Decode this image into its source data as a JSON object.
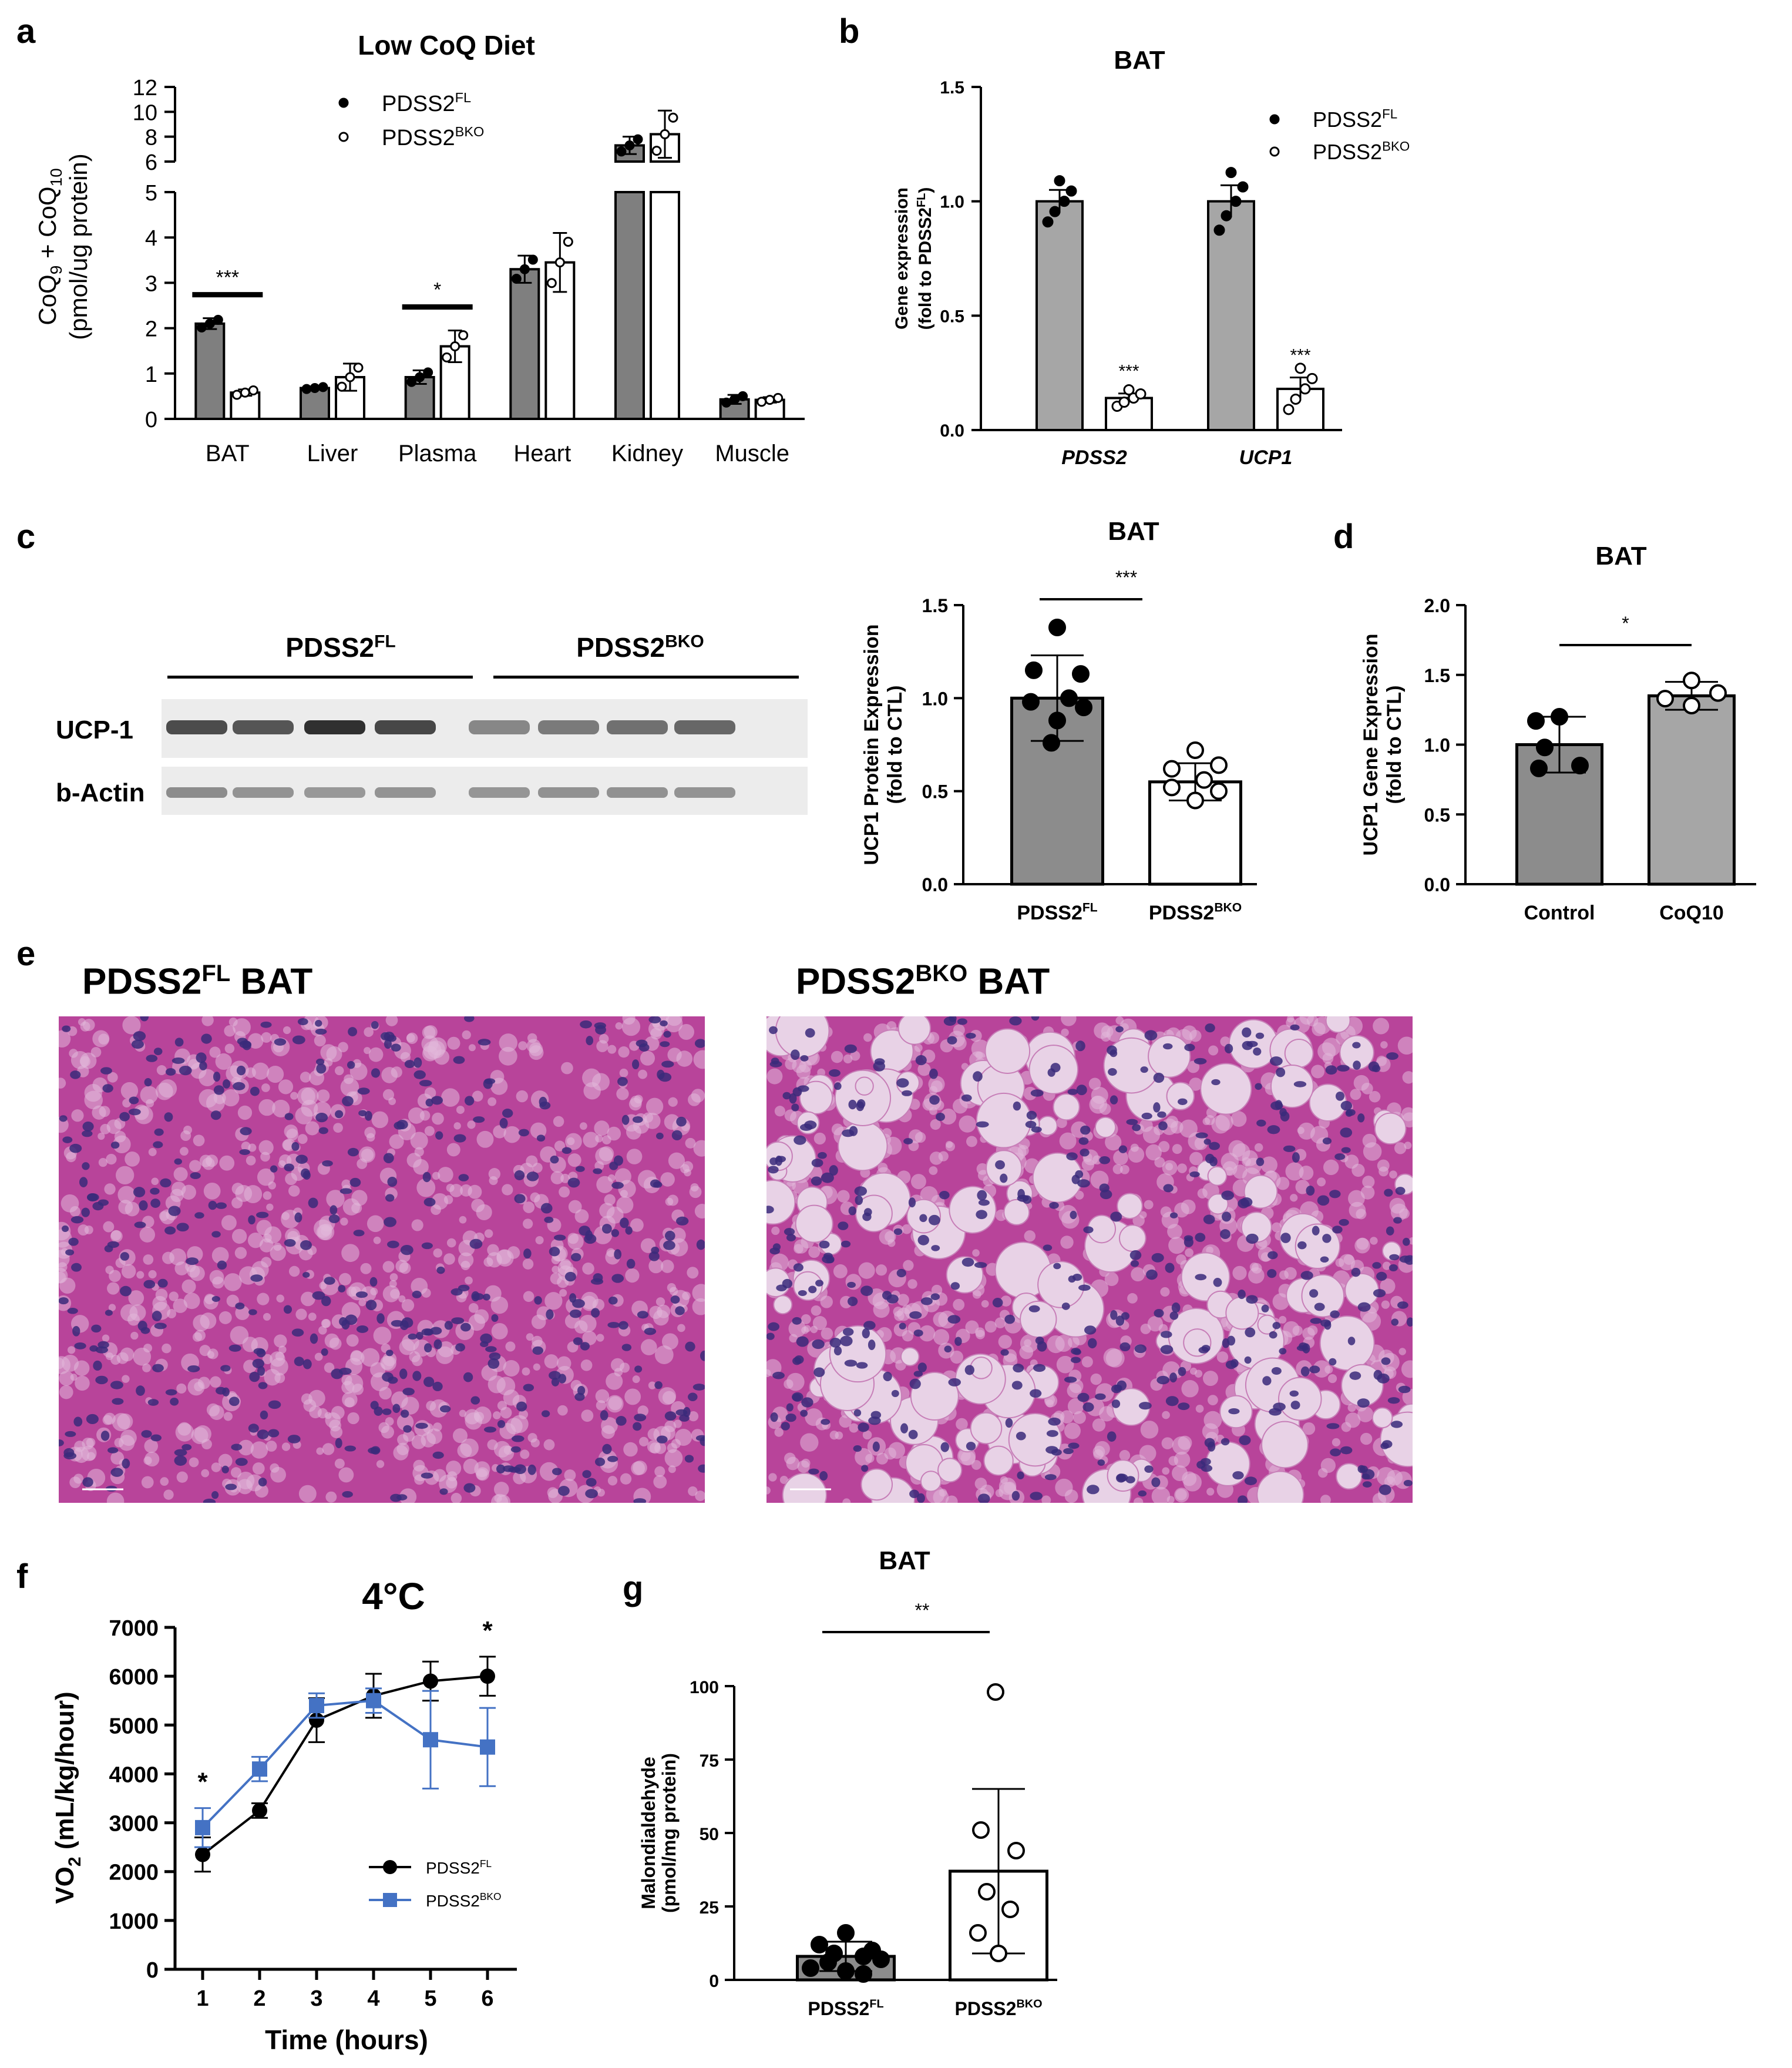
{
  "panels": {
    "a": {
      "letter": "a",
      "title": "Low CoQ Diet"
    },
    "b": {
      "letter": "b",
      "title": "BAT"
    },
    "c": {
      "letter": "c",
      "title": "BAT"
    },
    "d": {
      "letter": "d",
      "title": "BAT"
    },
    "e": {
      "letter": "e"
    },
    "f": {
      "letter": "f",
      "title": "4°C"
    },
    "g": {
      "letter": "g",
      "title": "BAT"
    }
  },
  "blot": {
    "group_fl": "PDSS2",
    "group_fl_sup": "FL",
    "group_bko": "PDSS2",
    "group_bko_sup": "BKO",
    "row1": "UCP-1",
    "row2": "b-Actin",
    "ucp1_intensity": [
      0.78,
      0.74,
      0.9,
      0.8,
      0.52,
      0.58,
      0.62,
      0.66
    ],
    "actin_intensity": [
      0.5,
      0.47,
      0.45,
      0.47,
      0.46,
      0.48,
      0.48,
      0.47
    ]
  },
  "histology": {
    "left_title": "PDSS2",
    "left_sup": "FL",
    "left_suffix": " BAT",
    "right_title": "PDSS2",
    "right_sup": "BKO",
    "right_suffix": " BAT",
    "tissue_color": "#b8449a",
    "nucleus_color": "#3a2a7a",
    "lipid_color": "#e8d2e6"
  },
  "chart_data": [
    {
      "id": "a",
      "type": "bar",
      "title": "Low CoQ Diet",
      "ylabel": "CoQ9 + CoQ10 (pmol/ug protein)",
      "categories": [
        "BAT",
        "Liver",
        "Plasma",
        "Heart",
        "Kidney",
        "Muscle"
      ],
      "ylim": [
        0,
        12
      ],
      "y_axis_break": [
        5,
        6
      ],
      "ticks_lower": [
        0,
        1,
        2,
        3,
        4,
        5
      ],
      "ticks_upper": [
        6,
        8,
        10,
        12
      ],
      "series": [
        {
          "name": "PDSS2FL",
          "legend": "PDSS2",
          "sup": "FL",
          "color": "#7f7f7f",
          "values": [
            2.1,
            0.68,
            0.92,
            3.3,
            7.3,
            0.43
          ],
          "err": [
            0.12,
            0.03,
            0.15,
            0.3,
            0.7,
            0.1
          ]
        },
        {
          "name": "PDSS2BKO",
          "legend": "PDSS2",
          "sup": "BKO",
          "color": "#ffffff",
          "values": [
            0.58,
            0.92,
            1.6,
            3.45,
            8.2,
            0.42
          ],
          "err": [
            0.07,
            0.3,
            0.35,
            0.65,
            1.9,
            0.06
          ]
        }
      ],
      "significance": [
        {
          "category": "BAT",
          "label": "***"
        },
        {
          "category": "Plasma",
          "label": "*"
        }
      ]
    },
    {
      "id": "b",
      "type": "bar",
      "title": "BAT",
      "ylabel": "Gene expression (fold to PDSS2FL)",
      "categories": [
        "PDSS2",
        "UCP1"
      ],
      "ylim": [
        0,
        1.5
      ],
      "ticks": [
        0.0,
        0.5,
        1.0,
        1.5
      ],
      "series": [
        {
          "name": "PDSS2FL",
          "legend": "PDSS2",
          "sup": "FL",
          "color": "#a6a6a6",
          "values": [
            1.0,
            1.0
          ],
          "err": [
            0.05,
            0.07
          ]
        },
        {
          "name": "PDSS2BKO",
          "legend": "PDSS2",
          "sup": "BKO",
          "color": "#ffffff",
          "values": [
            0.14,
            0.18
          ],
          "err": [
            0.02,
            0.05
          ]
        }
      ],
      "significance": [
        {
          "category": "PDSS2",
          "label": "***"
        },
        {
          "category": "UCP1",
          "label": "***"
        }
      ]
    },
    {
      "id": "c",
      "type": "bar",
      "title": "BAT",
      "ylabel": "UCP1 Protein Expression (fold to CTL)",
      "categories": [
        "PDSS2FL",
        "PDSS2BKO"
      ],
      "category_labels": [
        {
          "base": "PDSS2",
          "sup": "FL"
        },
        {
          "base": "PDSS2",
          "sup": "BKO"
        }
      ],
      "ylim": [
        0,
        1.5
      ],
      "ticks": [
        0.0,
        0.5,
        1.0,
        1.5
      ],
      "values": [
        1.0,
        0.55
      ],
      "err": [
        0.23,
        0.1
      ],
      "colors": [
        "#8c8c8c",
        "#ffffff"
      ],
      "significance": "***"
    },
    {
      "id": "d",
      "type": "bar",
      "title": "BAT",
      "ylabel": "UCP1 Gene Expression (fold to CTL)",
      "categories": [
        "Control",
        "CoQ10"
      ],
      "ylim": [
        0,
        2.0
      ],
      "ticks": [
        0.0,
        0.5,
        1.0,
        1.5,
        2.0
      ],
      "values": [
        1.0,
        1.35
      ],
      "err": [
        0.2,
        0.1
      ],
      "colors": [
        "#8c8c8c",
        "#a6a6a6"
      ],
      "significance": "*"
    },
    {
      "id": "f",
      "type": "line",
      "title": "4°C",
      "xlabel": "Time (hours)",
      "ylabel": "VO2 (mL/kg/hour)",
      "x": [
        1,
        2,
        3,
        4,
        5,
        6
      ],
      "ylim": [
        0,
        7000
      ],
      "ticks": [
        0,
        1000,
        2000,
        3000,
        4000,
        5000,
        6000,
        7000
      ],
      "series": [
        {
          "name": "PDSS2FL",
          "legend": "PDSS2",
          "sup": "FL",
          "color": "#000000",
          "marker": "circle",
          "values": [
            2350,
            3250,
            5100,
            5600,
            5900,
            6000
          ],
          "err": [
            350,
            150,
            450,
            450,
            400,
            400
          ]
        },
        {
          "name": "PDSS2BKO",
          "legend": "PDSS2",
          "sup": "BKO",
          "color": "#4472c4",
          "marker": "square",
          "values": [
            2900,
            4100,
            5400,
            5500,
            4700,
            4550
          ],
          "err": [
            400,
            250,
            250,
            250,
            1000,
            800
          ]
        }
      ],
      "significance": [
        {
          "x": 1,
          "label": "*"
        },
        {
          "x": 6,
          "label": "*"
        }
      ]
    },
    {
      "id": "g",
      "type": "bar",
      "title": "BAT",
      "ylabel": "Malondialdehyde (pmol/mg protein)",
      "categories": [
        "PDSS2FL",
        "PDSS2BKO"
      ],
      "category_labels": [
        {
          "base": "PDSS2",
          "sup": "FL"
        },
        {
          "base": "PDSS2",
          "sup": "BKO"
        }
      ],
      "ylim": [
        0,
        100
      ],
      "ticks": [
        0,
        25,
        50,
        75,
        100
      ],
      "values": [
        8,
        37
      ],
      "err": [
        5,
        28
      ],
      "colors": [
        "#8c8c8c",
        "#ffffff"
      ],
      "significance": "**"
    }
  ]
}
